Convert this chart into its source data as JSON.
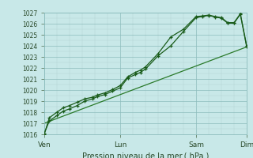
{
  "xlabel": "Pression niveau de la mer ( hPa )",
  "bg_color": "#c8e8e8",
  "grid_color_major": "#8cbcbc",
  "grid_color_minor": "#b0d4d4",
  "line_color_dark": "#1a5c1a",
  "line_color_mid": "#2a7a2a",
  "ylim": [
    1016,
    1027
  ],
  "yticks": [
    1016,
    1017,
    1018,
    1019,
    1020,
    1021,
    1022,
    1023,
    1024,
    1025,
    1026,
    1027
  ],
  "xtick_labels": [
    "Ven",
    "Lun",
    "Sam",
    "Dim"
  ],
  "xtick_positions": [
    0,
    3,
    6,
    8
  ],
  "x_total": 8,
  "series1_x": [
    0,
    0.2,
    0.5,
    0.75,
    1.0,
    1.3,
    1.6,
    1.9,
    2.1,
    2.4,
    2.7,
    3.0,
    3.3,
    3.6,
    3.8,
    4.0,
    4.5,
    5.0,
    5.5,
    6.0,
    6.25,
    6.5,
    6.75,
    7.0,
    7.25,
    7.5,
    7.75,
    8.0
  ],
  "series1_y": [
    1016.1,
    1017.2,
    1017.7,
    1018.1,
    1018.3,
    1018.6,
    1019.0,
    1019.2,
    1019.4,
    1019.6,
    1019.9,
    1020.2,
    1021.1,
    1021.4,
    1021.6,
    1021.9,
    1023.1,
    1024.0,
    1025.3,
    1026.55,
    1026.65,
    1026.75,
    1026.6,
    1026.5,
    1026.05,
    1026.05,
    1026.85,
    1023.9
  ],
  "series2_x": [
    0,
    0.2,
    0.5,
    0.75,
    1.0,
    1.3,
    1.6,
    1.9,
    2.1,
    2.4,
    2.7,
    3.0,
    3.3,
    3.6,
    3.8,
    4.0,
    4.5,
    5.0,
    5.5,
    6.0,
    6.25,
    6.5,
    6.75,
    7.0,
    7.25,
    7.5,
    7.75,
    8.0
  ],
  "series2_y": [
    1016.0,
    1017.5,
    1018.0,
    1018.4,
    1018.6,
    1018.9,
    1019.2,
    1019.35,
    1019.55,
    1019.75,
    1020.05,
    1020.4,
    1021.2,
    1021.6,
    1021.8,
    1022.1,
    1023.3,
    1024.8,
    1025.5,
    1026.65,
    1026.7,
    1026.78,
    1026.65,
    1026.55,
    1026.1,
    1026.1,
    1026.9,
    1024.0
  ],
  "series3_x": [
    0,
    8.0
  ],
  "series3_y": [
    1017.0,
    1023.9
  ],
  "xlabel_fontsize": 7,
  "ytick_fontsize": 5.5,
  "xtick_fontsize": 6.5
}
